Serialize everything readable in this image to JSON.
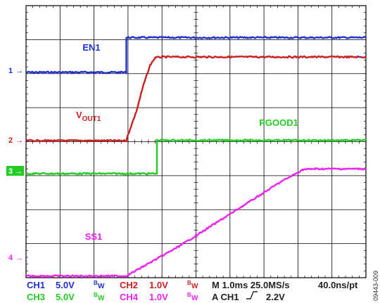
{
  "chart_data": {
    "type": "line",
    "x": {
      "unit": "ms",
      "range": [
        0,
        10
      ],
      "divisions": 10
    },
    "y": {
      "unit": "div",
      "range": [
        0,
        8
      ],
      "divisions": 8
    },
    "grid": true,
    "colors": {
      "CH1": "#1f2fd6",
      "CH2": "#cc1f1f",
      "CH3": "#22cc22",
      "CH4": "#ee22ee"
    },
    "series": [
      {
        "name": "EN1",
        "channel": "CH1",
        "x": [
          0,
          2.95,
          2.95,
          10
        ],
        "y": [
          6.04,
          6.04,
          7.06,
          7.06
        ]
      },
      {
        "name": "VOUT1",
        "channel": "CH2",
        "x": [
          0,
          2.95,
          3.0,
          3.25,
          3.45,
          3.65,
          3.8,
          4.0,
          10
        ],
        "y": [
          4.03,
          4.03,
          4.2,
          4.9,
          5.65,
          6.25,
          6.47,
          6.49,
          6.49
        ]
      },
      {
        "name": "PGOOD1",
        "channel": "CH3",
        "x": [
          0,
          3.85,
          3.85,
          10
        ],
        "y": [
          3.06,
          3.06,
          4.04,
          4.04
        ]
      },
      {
        "name": "SS1",
        "channel": "CH4",
        "x": [
          0,
          2.95,
          4.5,
          6.0,
          7.5,
          8.15,
          8.5,
          10
        ],
        "y": [
          0.05,
          0.05,
          0.92,
          1.87,
          2.82,
          3.18,
          3.2,
          3.2
        ]
      }
    ],
    "trace_labels": {
      "ch1": "EN1",
      "ch2_main": "V",
      "ch2_sub": "OUT1",
      "ch3": "PGOOD1",
      "ch4": "SS1"
    },
    "markers": {
      "ch1": "1",
      "ch2": "2",
      "ch3": "3",
      "ch4": "4"
    },
    "arrow": "→",
    "footer": {
      "ch1": "CH1",
      "ch1_scale": "5.0V",
      "ch2": "CH2",
      "ch2_scale": "1.0V",
      "ch3": "CH3",
      "ch3_scale": "5.0V",
      "ch4": "CH4",
      "ch4_scale": "1.0V",
      "bw_b": "B",
      "bw_w": "W",
      "timebase": "M 1.0ms 25.0MS/s",
      "resolution": "40.0ns/pt",
      "trigger": "A CH1",
      "trigger_level": "2.2V"
    },
    "figure_id": "09443-009"
  }
}
